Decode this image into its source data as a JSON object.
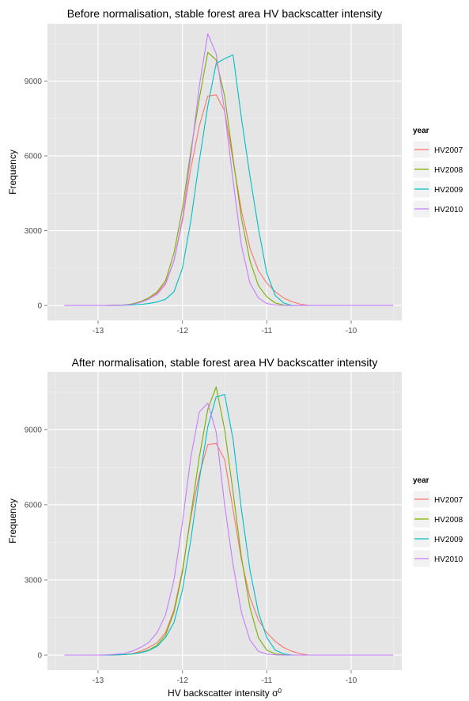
{
  "figure": {
    "colors": {
      "panel_bg": "#e5e5e5",
      "grid_major": "#ffffff",
      "grid_minor": "#f2f2f2",
      "tick_text": "#4d4d4d",
      "title_text": "#000000"
    }
  },
  "chart_data": [
    {
      "type": "line",
      "title": "Before normalisation, stable forest area HV backscatter intensity",
      "xlabel": "",
      "ylabel": "Frequency",
      "xlim": [
        -13.6,
        -9.4
      ],
      "ylim": [
        -600,
        11300
      ],
      "xticks": [
        -13,
        -12,
        -11,
        -10
      ],
      "xtick_labels": [
        "-13",
        "-12",
        "-11",
        "-10"
      ],
      "yticks": [
        0,
        3000,
        6000,
        9000
      ],
      "ytick_labels": [
        "0",
        "3000",
        "6000",
        "9000"
      ],
      "grid": true,
      "legend": {
        "title": "year",
        "position": "right"
      },
      "series": [
        {
          "name": "HV2007",
          "color": "#F8766D",
          "x": [
            -12.9,
            -12.8,
            -12.7,
            -12.6,
            -12.5,
            -12.4,
            -12.3,
            -12.2,
            -12.1,
            -12.0,
            -11.9,
            -11.8,
            -11.7,
            -11.6,
            -11.5,
            -11.4,
            -11.3,
            -11.2,
            -11.1,
            -11.0,
            -10.9,
            -10.8,
            -10.7,
            -10.6,
            -10.5
          ],
          "y": [
            0,
            10,
            20,
            50,
            150,
            300,
            500,
            900,
            1800,
            3400,
            5500,
            7200,
            8400,
            8450,
            7800,
            5800,
            3800,
            2300,
            1400,
            900,
            550,
            300,
            150,
            50,
            0
          ]
        },
        {
          "name": "HV2008",
          "color": "#7CAE00",
          "x": [
            -12.9,
            -12.8,
            -12.7,
            -12.6,
            -12.5,
            -12.4,
            -12.3,
            -12.2,
            -12.1,
            -12.0,
            -11.9,
            -11.8,
            -11.7,
            -11.6,
            -11.5,
            -11.4,
            -11.3,
            -11.2,
            -11.1,
            -11.0,
            -10.9,
            -10.8,
            -10.7
          ],
          "y": [
            0,
            10,
            20,
            60,
            150,
            300,
            550,
            1000,
            2100,
            3900,
            6200,
            8300,
            10150,
            9850,
            8400,
            5900,
            3500,
            1800,
            800,
            350,
            100,
            20,
            0
          ]
        },
        {
          "name": "HV2009",
          "color": "#00BFC4",
          "x": [
            -12.9,
            -12.8,
            -12.7,
            -12.6,
            -12.5,
            -12.4,
            -12.3,
            -12.2,
            -12.1,
            -12.0,
            -11.9,
            -11.8,
            -11.7,
            -11.6,
            -11.5,
            -11.4,
            -11.3,
            -11.2,
            -11.1,
            -11.0,
            -10.9,
            -10.8,
            -10.7
          ],
          "y": [
            0,
            0,
            10,
            20,
            40,
            80,
            140,
            250,
            550,
            1500,
            3400,
            5800,
            8000,
            9700,
            9900,
            10050,
            7500,
            5200,
            3100,
            1300,
            400,
            100,
            0
          ]
        },
        {
          "name": "HV2010",
          "color": "#C77CFF",
          "x": [
            -13.4,
            -13.3,
            -13.2,
            -13.1,
            -13.0,
            -12.9,
            -12.8,
            -12.7,
            -12.6,
            -12.5,
            -12.4,
            -12.3,
            -12.2,
            -12.1,
            -12.0,
            -11.9,
            -11.8,
            -11.7,
            -11.6,
            -11.5,
            -11.4,
            -11.3,
            -11.2,
            -11.1,
            -11.0,
            -10.9,
            -10.8,
            -10.7,
            -10.6,
            -10.5,
            -10.4,
            -10.3,
            -10.2,
            -10.1,
            -10.0,
            -9.9,
            -9.8,
            -9.7,
            -9.6,
            -9.5
          ],
          "y": [
            0,
            0,
            0,
            0,
            0,
            0,
            5,
            15,
            40,
            120,
            250,
            450,
            850,
            1800,
            3500,
            6000,
            8800,
            10900,
            10100,
            7800,
            5000,
            2400,
            900,
            300,
            80,
            20,
            5,
            0,
            0,
            0,
            0,
            0,
            0,
            0,
            0,
            0,
            0,
            0,
            0,
            0
          ]
        }
      ]
    },
    {
      "type": "line",
      "title": "After normalisation, stable forest area HV backscatter intensity",
      "xlabel": "HV backscatter intensity σ⁰",
      "ylabel": "Frequency",
      "xlim": [
        -13.6,
        -9.4
      ],
      "ylim": [
        -600,
        11300
      ],
      "xticks": [
        -13,
        -12,
        -11,
        -10
      ],
      "xtick_labels": [
        "-13",
        "-12",
        "-11",
        "-10"
      ],
      "yticks": [
        0,
        3000,
        6000,
        9000
      ],
      "ytick_labels": [
        "0",
        "3000",
        "6000",
        "9000"
      ],
      "grid": true,
      "legend": {
        "title": "year",
        "position": "right"
      },
      "series": [
        {
          "name": "HV2007",
          "color": "#F8766D",
          "x": [
            -12.9,
            -12.8,
            -12.7,
            -12.6,
            -12.5,
            -12.4,
            -12.3,
            -12.2,
            -12.1,
            -12.0,
            -11.9,
            -11.8,
            -11.7,
            -11.6,
            -11.5,
            -11.4,
            -11.3,
            -11.2,
            -11.1,
            -11.0,
            -10.9,
            -10.8,
            -10.7,
            -10.6,
            -10.5
          ],
          "y": [
            0,
            10,
            20,
            50,
            150,
            300,
            500,
            900,
            1800,
            3400,
            5500,
            7200,
            8400,
            8450,
            7800,
            5800,
            3800,
            2300,
            1400,
            900,
            550,
            300,
            150,
            50,
            0
          ]
        },
        {
          "name": "HV2008",
          "color": "#7CAE00",
          "x": [
            -12.9,
            -12.8,
            -12.7,
            -12.6,
            -12.5,
            -12.4,
            -12.3,
            -12.2,
            -12.1,
            -12.0,
            -11.9,
            -11.8,
            -11.7,
            -11.6,
            -11.5,
            -11.4,
            -11.3,
            -11.2,
            -11.1,
            -11.0,
            -10.9,
            -10.8,
            -10.7
          ],
          "y": [
            0,
            10,
            20,
            40,
            100,
            200,
            400,
            800,
            1700,
            3300,
            5600,
            7900,
            9800,
            10700,
            9000,
            6500,
            3900,
            1900,
            700,
            200,
            50,
            10,
            0
          ]
        },
        {
          "name": "HV2009",
          "color": "#00BFC4",
          "x": [
            -13.0,
            -12.9,
            -12.8,
            -12.7,
            -12.6,
            -12.5,
            -12.4,
            -12.3,
            -12.2,
            -12.1,
            -12.0,
            -11.9,
            -11.8,
            -11.7,
            -11.6,
            -11.5,
            -11.4,
            -11.3,
            -11.2,
            -11.1,
            -11.0,
            -10.9,
            -10.8,
            -10.7
          ],
          "y": [
            0,
            0,
            10,
            20,
            40,
            90,
            180,
            350,
            700,
            1300,
            2600,
            4600,
            7000,
            9100,
            10300,
            10400,
            8600,
            5800,
            3400,
            1700,
            700,
            200,
            50,
            0
          ]
        },
        {
          "name": "HV2010",
          "color": "#C77CFF",
          "x": [
            -13.4,
            -13.3,
            -13.2,
            -13.1,
            -13.0,
            -12.9,
            -12.8,
            -12.7,
            -12.6,
            -12.5,
            -12.4,
            -12.3,
            -12.2,
            -12.1,
            -12.0,
            -11.9,
            -11.8,
            -11.7,
            -11.6,
            -11.5,
            -11.4,
            -11.3,
            -11.2,
            -11.1,
            -11.0,
            -10.9,
            -10.8,
            -10.7,
            -10.6,
            -10.5,
            -10.4,
            -10.3,
            -10.2,
            -10.1,
            -10.0,
            -9.9,
            -9.8,
            -9.7,
            -9.6,
            -9.5
          ],
          "y": [
            0,
            0,
            0,
            0,
            0,
            10,
            30,
            60,
            150,
            300,
            500,
            900,
            1600,
            3000,
            5300,
            7900,
            9700,
            10050,
            8900,
            6000,
            3600,
            1700,
            600,
            150,
            40,
            10,
            0,
            0,
            0,
            0,
            0,
            0,
            0,
            0,
            0,
            0,
            0,
            0,
            0,
            0
          ]
        }
      ]
    }
  ]
}
